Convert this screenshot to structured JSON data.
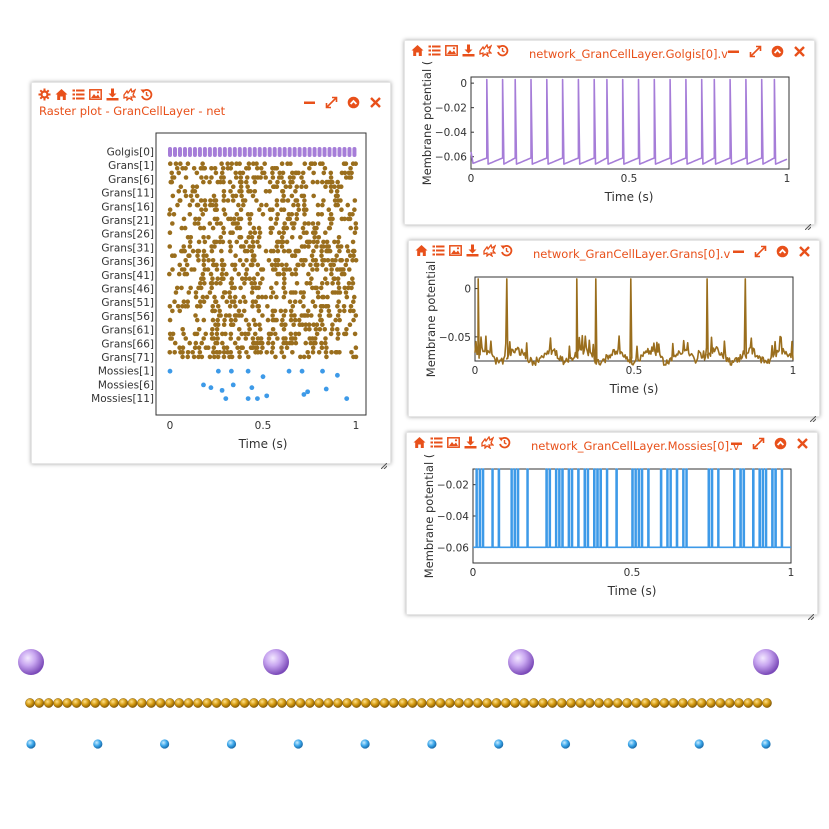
{
  "colors": {
    "accent": "#e8501a",
    "golgi": "#a67dd8",
    "gran": "#9a6e1d",
    "mossy": "#3d9ae8"
  },
  "raster": {
    "title": "Raster plot - GranCellLayer - net",
    "xlabel": "Time (s)",
    "ticks": [
      "0",
      "0.5",
      "1"
    ],
    "rows": [
      "Golgis[0]",
      "Grans[1]",
      "Grans[6]",
      "Grans[11]",
      "Grans[16]",
      "Grans[21]",
      "Grans[26]",
      "Grans[31]",
      "Grans[36]",
      "Grans[41]",
      "Grans[46]",
      "Grans[51]",
      "Grans[56]",
      "Grans[61]",
      "Grans[66]",
      "Grans[71]",
      "Mossies[1]",
      "Mossies[6]",
      "Mossies[11]"
    ]
  },
  "golgi": {
    "title": "network_GranCellLayer.Golgis[0].v",
    "ylabel": "Membrane potential (",
    "xlabel": "Time (s)",
    "xticks": [
      "0",
      "0.5",
      "1"
    ],
    "yticks": [
      "0",
      "−0.02",
      "−0.04",
      "−0.06"
    ]
  },
  "grans": {
    "title": "network_GranCellLayer.Grans[0].v",
    "ylabel": "Membrane potential",
    "xlabel": "Time (s)",
    "xticks": [
      "0",
      "0.5",
      "1"
    ],
    "yticks": [
      "0",
      "−0.05"
    ]
  },
  "mossies": {
    "title": "network_GranCellLayer.Mossies[0].v",
    "ylabel": "Membrane potential (",
    "xlabel": "Time (s)",
    "xticks": [
      "0",
      "0.5",
      "1"
    ],
    "yticks": [
      "−0.02",
      "−0.04",
      "−0.06"
    ]
  },
  "chart_data": [
    {
      "type": "scatter",
      "title": "Raster plot - GranCellLayer - net",
      "xlabel": "Time (s)",
      "ylabel": "",
      "xlim": [
        0,
        1.05
      ],
      "series": [
        {
          "name": "Golgis",
          "color": "#a67dd8"
        },
        {
          "name": "Grans",
          "color": "#9a6e1d"
        },
        {
          "name": "Mossies",
          "color": "#3d9ae8"
        }
      ]
    },
    {
      "type": "line",
      "title": "network_GranCellLayer.Golgis[0].v",
      "xlabel": "Time (s)",
      "ylabel": "Membrane potential (",
      "xlim": [
        0,
        1
      ],
      "ylim": [
        -0.07,
        0.005
      ],
      "series": [
        {
          "name": "Golgis[0].v",
          "spike_times": [
            0.05,
            0.1,
            0.14,
            0.19,
            0.24,
            0.29,
            0.34,
            0.39,
            0.43,
            0.48,
            0.53,
            0.58,
            0.63,
            0.68,
            0.73,
            0.77,
            0.82,
            0.87,
            0.92,
            0.96
          ],
          "baseline": -0.063,
          "peak": 0.003
        }
      ]
    },
    {
      "type": "line",
      "title": "network_GranCellLayer.Grans[0].v",
      "xlabel": "Time (s)",
      "ylabel": "Membrane potential",
      "xlim": [
        0,
        1
      ],
      "ylim": [
        -0.075,
        0.012
      ],
      "series": [
        {
          "name": "Grans[0].v",
          "spike_times": [
            0.01,
            0.1,
            0.32,
            0.38,
            0.49,
            0.73,
            0.85
          ],
          "baseline": -0.07,
          "peak": 0.01
        }
      ]
    },
    {
      "type": "line",
      "title": "network_GranCellLayer.Mossies[0].v",
      "xlabel": "Time (s)",
      "ylabel": "Membrane potential (",
      "xlim": [
        0,
        1
      ],
      "ylim": [
        -0.07,
        -0.01
      ],
      "series": [
        {
          "name": "Mossies[0].v",
          "pulse_times": [
            0.01,
            0.02,
            0.03,
            0.06,
            0.08,
            0.12,
            0.13,
            0.14,
            0.17,
            0.23,
            0.24,
            0.26,
            0.27,
            0.28,
            0.3,
            0.31,
            0.33,
            0.35,
            0.36,
            0.38,
            0.39,
            0.4,
            0.42,
            0.45,
            0.5,
            0.51,
            0.52,
            0.53,
            0.55,
            0.59,
            0.61,
            0.62,
            0.64,
            0.66,
            0.67,
            0.74,
            0.75,
            0.77,
            0.82,
            0.84,
            0.85,
            0.88,
            0.9,
            0.91,
            0.92,
            0.94,
            0.95,
            0.97
          ],
          "baseline": -0.06,
          "peak": -0.01
        }
      ]
    }
  ]
}
